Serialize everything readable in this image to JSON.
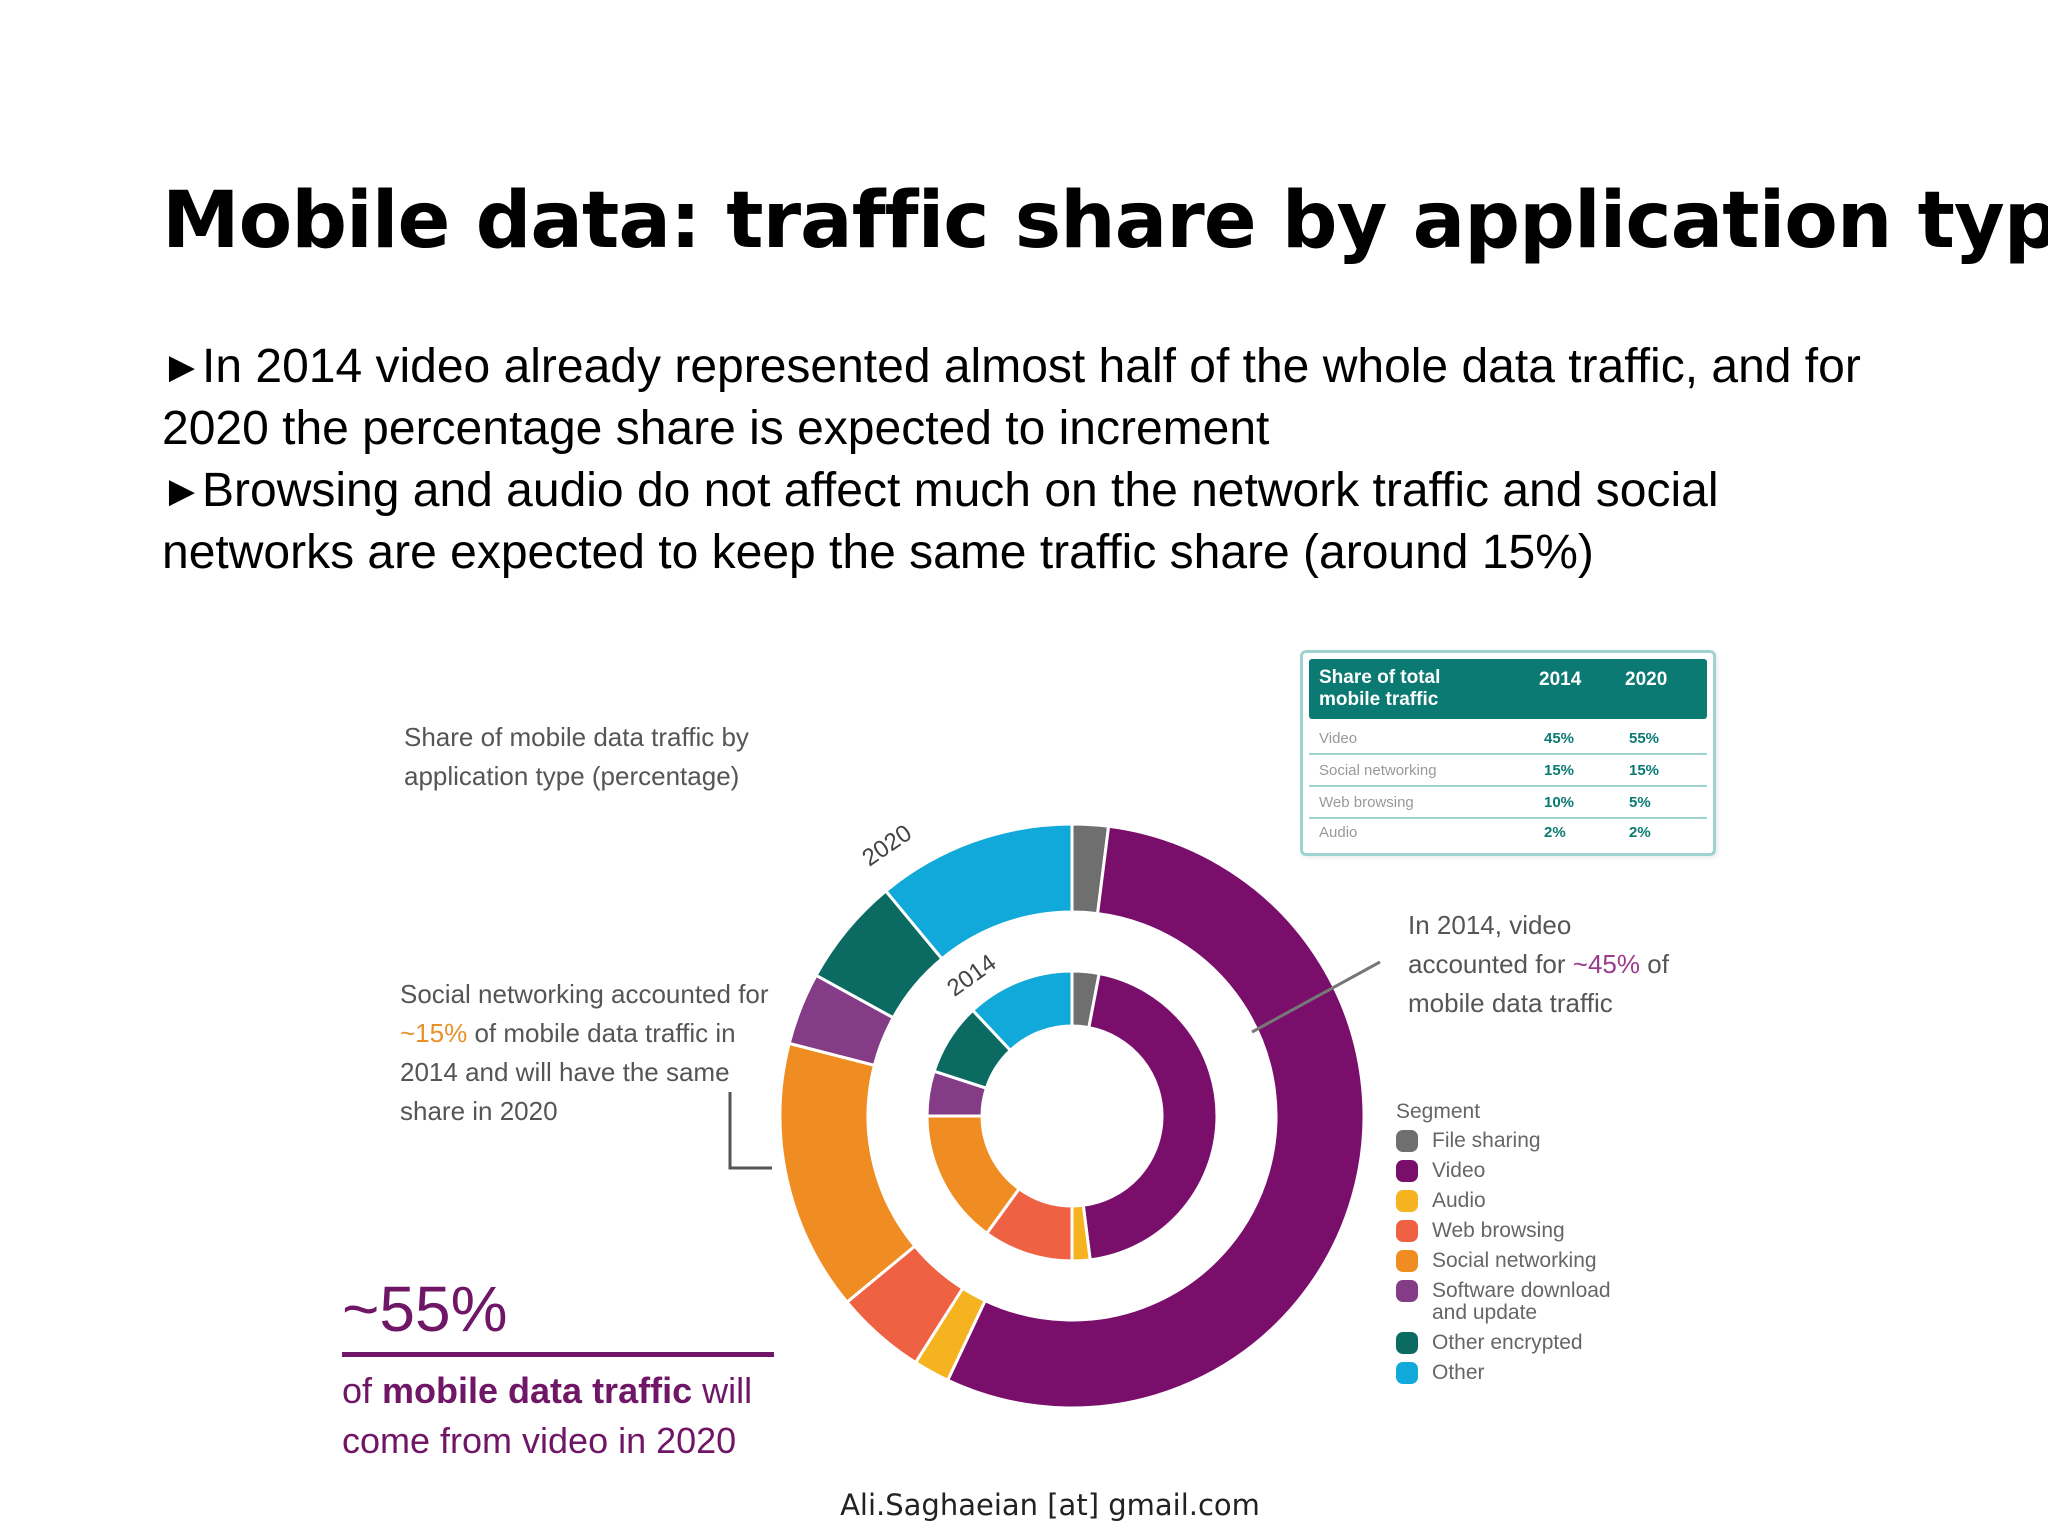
{
  "slide": {
    "title": "Mobile data: traffic share by application type",
    "bullets": [
      "In 2014 video already represented almost half of the whole data traffic, and for 2020 the percentage share is expected to increment",
      "Browsing and audio do not affect much on the network traffic and social networks are expected to keep the same traffic share (around 15%)"
    ],
    "footer": "Ali.Saghaeian [at] gmail.com"
  },
  "chart_data": {
    "type": "pie",
    "variant": "double-donut",
    "title": "Share of mobile data traffic by application type (percentage)",
    "rings": [
      {
        "name": "2020",
        "position": "outer",
        "slices": [
          {
            "segment": "File sharing",
            "value": 2
          },
          {
            "segment": "Video",
            "value": 55
          },
          {
            "segment": "Audio",
            "value": 2
          },
          {
            "segment": "Web browsing",
            "value": 5
          },
          {
            "segment": "Social networking",
            "value": 15
          },
          {
            "segment": "Software download and update",
            "value": 4
          },
          {
            "segment": "Other encrypted",
            "value": 6
          },
          {
            "segment": "Other",
            "value": 11
          }
        ]
      },
      {
        "name": "2014",
        "position": "inner",
        "slices": [
          {
            "segment": "File sharing",
            "value": 3
          },
          {
            "segment": "Video",
            "value": 45
          },
          {
            "segment": "Audio",
            "value": 2
          },
          {
            "segment": "Web browsing",
            "value": 10
          },
          {
            "segment": "Social networking",
            "value": 15
          },
          {
            "segment": "Software download and update",
            "value": 5
          },
          {
            "segment": "Other encrypted",
            "value": 8
          },
          {
            "segment": "Other",
            "value": 12
          }
        ]
      }
    ],
    "legend": {
      "title": "Segment",
      "placement": "bottom-right",
      "items": [
        {
          "label": "File sharing",
          "color": "#6f6f6f"
        },
        {
          "label": "Video",
          "color": "#7a0f6b"
        },
        {
          "label": "Audio",
          "color": "#f5b320"
        },
        {
          "label": "Web browsing",
          "color": "#ee6243"
        },
        {
          "label": "Social networking",
          "color": "#f08d22"
        },
        {
          "label": "Software download and update",
          "color": "#843c87"
        },
        {
          "label": "Other encrypted",
          "color": "#0b6b62"
        },
        {
          "label": "Other",
          "color": "#10a9d9"
        }
      ]
    },
    "table": {
      "header": "Share of total mobile traffic",
      "years": [
        "2014",
        "2020"
      ],
      "rows": [
        {
          "label": "Video",
          "v2014": "45%",
          "v2020": "55%"
        },
        {
          "label": "Social networking",
          "v2014": "15%",
          "v2020": "15%"
        },
        {
          "label": "Web browsing",
          "v2014": "10%",
          "v2020": "5%"
        },
        {
          "label": "Audio",
          "v2014": "2%",
          "v2020": "2%"
        }
      ]
    },
    "annotations": {
      "video_2014_pre": "In 2014, video accounted for ",
      "video_2014_pct": "~45%",
      "video_2014_post": " of mobile data traffic",
      "social_pre": "Social networking accounted for ",
      "social_pct": "~15%",
      "social_post": " of mobile data traffic in 2014 and will have the same share in 2020",
      "big_stat": "~55%",
      "big_stat_pre": "of ",
      "big_stat_bold": "mobile data traffic",
      "big_stat_post": " will come from video in 2020"
    }
  }
}
